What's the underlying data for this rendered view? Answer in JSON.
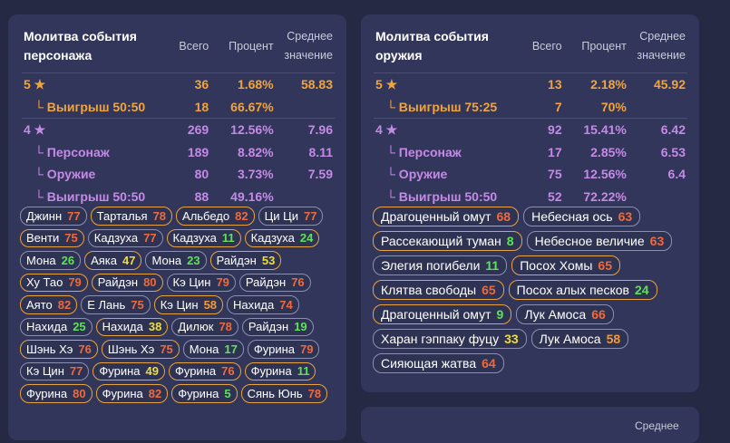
{
  "left": {
    "title": "Молитва события персонажа",
    "columns": [
      "Всего",
      "Процент",
      "Среднее значение"
    ],
    "rows": [
      {
        "label": "5 ★",
        "total": "36",
        "percent": "1.68%",
        "avg": "58.83"
      },
      {
        "label": "└ Выигрыш 50:50",
        "total": "18",
        "percent": "66.67%",
        "avg": ""
      },
      {
        "label": "4 ★",
        "total": "269",
        "percent": "12.56%",
        "avg": "7.96"
      },
      {
        "label": "└ Персонаж",
        "total": "189",
        "percent": "8.82%",
        "avg": "8.11"
      },
      {
        "label": "└ Оружие",
        "total": "80",
        "percent": "3.73%",
        "avg": "7.59"
      },
      {
        "label": "└ Выигрыш 50:50",
        "total": "88",
        "percent": "49.16%",
        "avg": ""
      }
    ],
    "chips": [
      {
        "name": "Джинн",
        "count": "77",
        "rarity": "4",
        "tone": "red"
      },
      {
        "name": "Тарталья",
        "count": "78",
        "rarity": "5",
        "tone": "red"
      },
      {
        "name": "Альбедо",
        "count": "82",
        "rarity": "5",
        "tone": "red"
      },
      {
        "name": "Ци Ци",
        "count": "77",
        "rarity": "4",
        "tone": "red"
      },
      {
        "name": "Венти",
        "count": "75",
        "rarity": "5",
        "tone": "red"
      },
      {
        "name": "Кадзуха",
        "count": "77",
        "rarity": "4",
        "tone": "red"
      },
      {
        "name": "Кадзуха",
        "count": "11",
        "rarity": "5",
        "tone": "green"
      },
      {
        "name": "Кадзуха",
        "count": "24",
        "rarity": "5",
        "tone": "green"
      },
      {
        "name": "Мона",
        "count": "26",
        "rarity": "4",
        "tone": "green"
      },
      {
        "name": "Аяка",
        "count": "47",
        "rarity": "5",
        "tone": "yellow"
      },
      {
        "name": "Мона",
        "count": "23",
        "rarity": "4",
        "tone": "green"
      },
      {
        "name": "Райдэн",
        "count": "53",
        "rarity": "5",
        "tone": "yellow"
      },
      {
        "name": "Ху Тао",
        "count": "79",
        "rarity": "5",
        "tone": "red"
      },
      {
        "name": "Райдэн",
        "count": "80",
        "rarity": "5",
        "tone": "red"
      },
      {
        "name": "Кэ Цин",
        "count": "79",
        "rarity": "4",
        "tone": "red"
      },
      {
        "name": "Райдэн",
        "count": "76",
        "rarity": "4",
        "tone": "red"
      },
      {
        "name": "Аято",
        "count": "82",
        "rarity": "5",
        "tone": "red"
      },
      {
        "name": "Е Лань",
        "count": "75",
        "rarity": "4",
        "tone": "red"
      },
      {
        "name": "Кэ Цин",
        "count": "58",
        "rarity": "5",
        "tone": "orange"
      },
      {
        "name": "Нахида",
        "count": "74",
        "rarity": "4",
        "tone": "red"
      },
      {
        "name": "Нахида",
        "count": "25",
        "rarity": "4",
        "tone": "green"
      },
      {
        "name": "Нахида",
        "count": "38",
        "rarity": "5",
        "tone": "yellow"
      },
      {
        "name": "Дилюк",
        "count": "78",
        "rarity": "4",
        "tone": "red"
      },
      {
        "name": "Райдэн",
        "count": "19",
        "rarity": "4",
        "tone": "green"
      },
      {
        "name": "Шэнь Хэ",
        "count": "76",
        "rarity": "5",
        "tone": "red"
      },
      {
        "name": "Шэнь Хэ",
        "count": "75",
        "rarity": "5",
        "tone": "red"
      },
      {
        "name": "Мона",
        "count": "17",
        "rarity": "4",
        "tone": "green"
      },
      {
        "name": "Фурина",
        "count": "79",
        "rarity": "4",
        "tone": "red"
      },
      {
        "name": "Кэ Цин",
        "count": "77",
        "rarity": "4",
        "tone": "red"
      },
      {
        "name": "Фурина",
        "count": "49",
        "rarity": "5",
        "tone": "yellow"
      },
      {
        "name": "Фурина",
        "count": "76",
        "rarity": "5",
        "tone": "red"
      },
      {
        "name": "Фурина",
        "count": "11",
        "rarity": "5",
        "tone": "green"
      },
      {
        "name": "Фурина",
        "count": "80",
        "rarity": "5",
        "tone": "red"
      },
      {
        "name": "Фурина",
        "count": "82",
        "rarity": "5",
        "tone": "red"
      },
      {
        "name": "Фурина",
        "count": "5",
        "rarity": "5",
        "tone": "green"
      },
      {
        "name": "Сянь Юнь",
        "count": "78",
        "rarity": "5",
        "tone": "red"
      }
    ]
  },
  "right": {
    "title": "Молитва события оружия",
    "columns": [
      "Всего",
      "Процент",
      "Среднее значение"
    ],
    "rows": [
      {
        "label": "5 ★",
        "total": "13",
        "percent": "2.18%",
        "avg": "45.92"
      },
      {
        "label": "└ Выигрыш 75:25",
        "total": "7",
        "percent": "70%",
        "avg": ""
      },
      {
        "label": "4 ★",
        "total": "92",
        "percent": "15.41%",
        "avg": "6.42"
      },
      {
        "label": "└ Персонаж",
        "total": "17",
        "percent": "2.85%",
        "avg": "6.53"
      },
      {
        "label": "└ Оружие",
        "total": "75",
        "percent": "12.56%",
        "avg": "6.4"
      },
      {
        "label": "└ Выигрыш 50:50",
        "total": "52",
        "percent": "72.22%",
        "avg": ""
      }
    ],
    "chips": [
      {
        "name": "Драгоценный омут",
        "count": "68",
        "rarity": "5",
        "tone": "red"
      },
      {
        "name": "Небесная ось",
        "count": "63",
        "rarity": "4",
        "tone": "red"
      },
      {
        "name": "Рассекающий туман",
        "count": "8",
        "rarity": "5",
        "tone": "green"
      },
      {
        "name": "Небесное величие",
        "count": "63",
        "rarity": "4",
        "tone": "red"
      },
      {
        "name": "Элегия погибели",
        "count": "11",
        "rarity": "4",
        "tone": "green"
      },
      {
        "name": "Посох Хомы",
        "count": "65",
        "rarity": "5",
        "tone": "red"
      },
      {
        "name": "Клятва свободы",
        "count": "65",
        "rarity": "5",
        "tone": "red"
      },
      {
        "name": "Посох алых песков",
        "count": "24",
        "rarity": "5",
        "tone": "green"
      },
      {
        "name": "Драгоценный омут",
        "count": "9",
        "rarity": "5",
        "tone": "green"
      },
      {
        "name": "Лук Амоса",
        "count": "66",
        "rarity": "4",
        "tone": "red"
      },
      {
        "name": "Харан гэппаку фуцу",
        "count": "33",
        "rarity": "4",
        "tone": "yellow"
      },
      {
        "name": "Лук Амоса",
        "count": "58",
        "rarity": "4",
        "tone": "orange"
      },
      {
        "name": "Сияющая жатва",
        "count": "64",
        "rarity": "4",
        "tone": "red"
      }
    ]
  },
  "bottom": {
    "peek_text": "Среднее"
  },
  "colors": {
    "background": "#262944",
    "card": "#32365a",
    "five_star": "#f0a440",
    "four_star": "#c58ae6",
    "green": "#5fe15a",
    "yellow": "#f0dc3c",
    "orange": "#f09a3a",
    "red": "#ee6a3c"
  }
}
